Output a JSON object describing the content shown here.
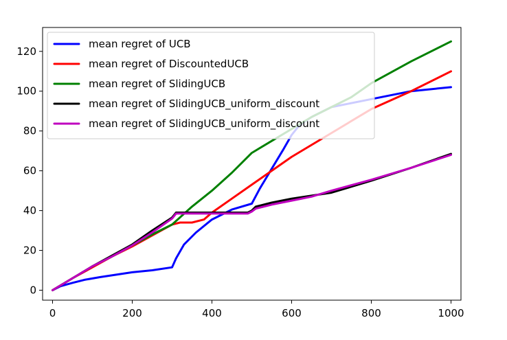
{
  "chart_data": {
    "type": "line",
    "title": "",
    "xlabel": "",
    "ylabel": "",
    "xlim": [
      -25,
      1025
    ],
    "ylim": [
      -5,
      132
    ],
    "xticks": [
      0,
      200,
      400,
      600,
      800,
      1000
    ],
    "yticks": [
      0,
      20,
      40,
      60,
      80,
      100,
      120
    ],
    "grid": false,
    "legend_position": "top-left",
    "series": [
      {
        "name": "mean regret of UCB",
        "color": "#0000ff",
        "x": [
          0,
          20,
          50,
          80,
          120,
          160,
          200,
          250,
          300,
          310,
          330,
          360,
          400,
          450,
          500,
          520,
          550,
          580,
          600,
          620,
          650,
          700,
          800,
          900,
          1000
        ],
        "y": [
          0,
          2,
          3.7,
          5.2,
          6.6,
          7.8,
          9,
          10,
          11.5,
          16,
          23,
          29,
          35.5,
          40.5,
          43.5,
          51,
          61,
          71,
          78,
          83,
          87,
          92,
          96,
          100,
          102
        ]
      },
      {
        "name": "mean regret of DiscountedUCB",
        "color": "#ff0000",
        "x": [
          0,
          50,
          100,
          150,
          200,
          250,
          300,
          320,
          350,
          380,
          400,
          450,
          500,
          550,
          600,
          650,
          700,
          800,
          900,
          1000
        ],
        "y": [
          0,
          6,
          11.5,
          17,
          22,
          27.5,
          33,
          34,
          34,
          35.5,
          39,
          46,
          53,
          60,
          67,
          73,
          79,
          91,
          100,
          110
        ]
      },
      {
        "name": "mean regret of SlidingUCB",
        "color": "#008000",
        "x": [
          0,
          50,
          100,
          150,
          200,
          250,
          300,
          350,
          400,
          450,
          500,
          550,
          600,
          650,
          700,
          750,
          800,
          900,
          1000
        ],
        "y": [
          0,
          6,
          12,
          17,
          22.5,
          28,
          33,
          42,
          50,
          59,
          69,
          75,
          81,
          87,
          92,
          97,
          104,
          115,
          125
        ]
      },
      {
        "name": "mean regret of SlidingUCB_uniform_discount",
        "color": "#000000",
        "x": [
          0,
          50,
          100,
          150,
          200,
          250,
          300,
          310,
          400,
          490,
          500,
          510,
          550,
          600,
          650,
          700,
          800,
          900,
          1000
        ],
        "y": [
          0,
          6,
          12,
          17.5,
          23,
          30,
          36.5,
          39,
          39,
          39,
          40,
          42,
          44,
          46,
          47.5,
          49,
          55,
          61.5,
          68.5
        ]
      },
      {
        "name": "mean regret of SlidingUCB_uniform_discount",
        "color": "#bf00bf",
        "x": [
          0,
          50,
          100,
          150,
          200,
          250,
          300,
          310,
          400,
          490,
          500,
          510,
          550,
          600,
          650,
          700,
          800,
          900,
          1000
        ],
        "y": [
          0,
          6,
          12,
          17,
          22.5,
          29,
          36,
          38.5,
          38.5,
          38.5,
          39.5,
          41,
          43,
          45,
          47,
          50,
          55.5,
          61.5,
          68
        ]
      }
    ]
  }
}
